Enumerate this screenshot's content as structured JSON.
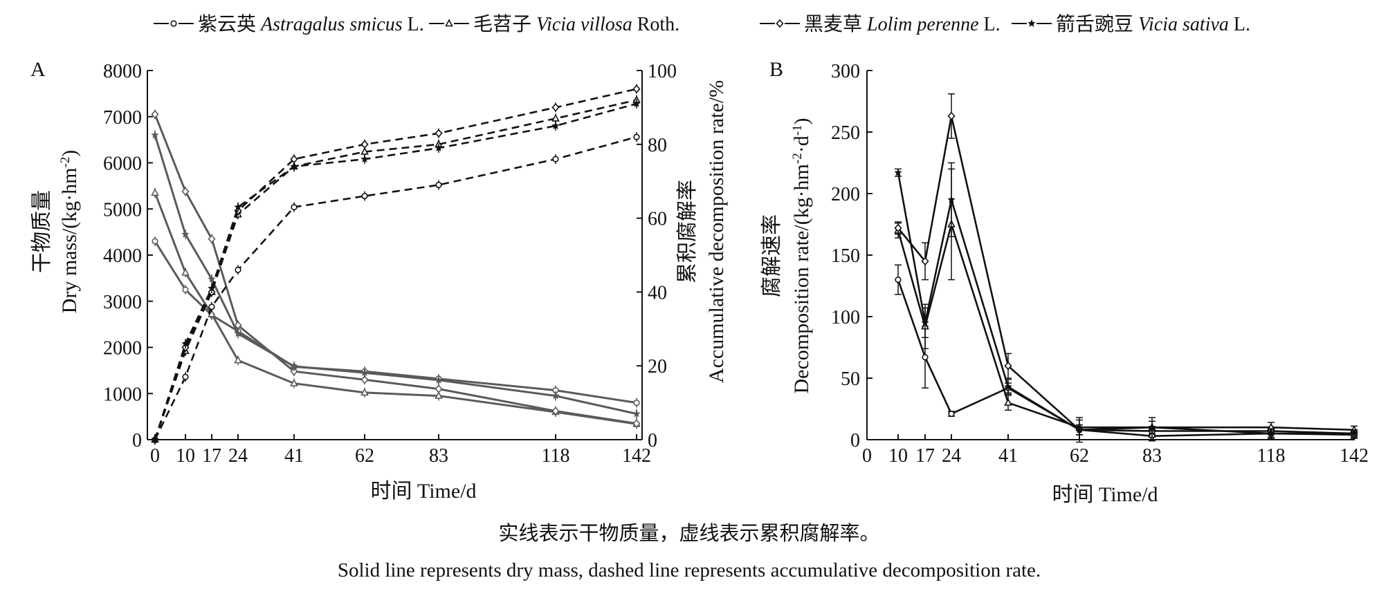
{
  "legend": [
    {
      "cn": "紫云英",
      "latin": "Astragalus smicus",
      "author": "L.",
      "marker": "circle"
    },
    {
      "cn": "毛苕子",
      "latin": "Vicia villosa",
      "author": "Roth.",
      "marker": "triangle"
    },
    {
      "cn": "黑麦草",
      "latin": "Lolim perenne",
      "author": "L.",
      "marker": "diamond"
    },
    {
      "cn": "箭舌豌豆",
      "latin": "Vicia sativa",
      "author": "L.",
      "marker": "star"
    }
  ],
  "caption": {
    "cn": "实线表示干物质量，虚线表示累积腐解率。",
    "en": "Solid line represents dry mass, dashed line represents accumulative decomposition rate."
  },
  "chart_data": [
    {
      "panel_label": "A",
      "type": "line",
      "x": [
        0,
        10,
        17,
        24,
        41,
        62,
        83,
        118,
        142
      ],
      "xticks": [
        "0",
        "10",
        "17",
        "24",
        "41",
        "62",
        "83",
        "118",
        "142"
      ],
      "xlabel": "时间 Time/d",
      "ylabel_left": {
        "cn": "干物质量",
        "en": "Dry mass/(kg·hm",
        "sup": "-2",
        "close": ")"
      },
      "ylabel_right": {
        "cn": "累积腐解率",
        "en": "Accumulative decomposition rate/%"
      },
      "ylim_left": [
        0,
        8000
      ],
      "ylim_right": [
        0,
        100
      ],
      "yticks_left": [
        "0",
        "1000",
        "2000",
        "3000",
        "4000",
        "5000",
        "6000",
        "7000",
        "8000"
      ],
      "yticks_right": [
        "0",
        "20",
        "40",
        "60",
        "80",
        "100"
      ],
      "line_color": "#5a5a5a",
      "dry_mass_series": [
        {
          "marker": "circle",
          "values": [
            4300,
            3250,
            2700,
            2350,
            1580,
            1480,
            1320,
            1070,
            800
          ]
        },
        {
          "marker": "triangle",
          "values": [
            5350,
            3620,
            2720,
            1720,
            1220,
            1020,
            950,
            600,
            340
          ]
        },
        {
          "marker": "diamond",
          "values": [
            7050,
            5380,
            4350,
            2480,
            1480,
            1300,
            1100,
            620,
            350
          ]
        },
        {
          "marker": "star",
          "values": [
            6600,
            4450,
            3480,
            2300,
            1590,
            1450,
            1290,
            950,
            560
          ]
        }
      ],
      "decomposition_series": [
        {
          "marker": "circle",
          "values": [
            0,
            17,
            36,
            46,
            63,
            66,
            69,
            76,
            82
          ]
        },
        {
          "marker": "triangle",
          "values": [
            0,
            24,
            40,
            61,
            74,
            78,
            80,
            87,
            92
          ]
        },
        {
          "marker": "diamond",
          "values": [
            0,
            25,
            40,
            62,
            76,
            80,
            83,
            90,
            95
          ]
        },
        {
          "marker": "star",
          "values": [
            0,
            26,
            41,
            63,
            74,
            76,
            79,
            85,
            91
          ]
        }
      ]
    },
    {
      "panel_label": "B",
      "type": "line",
      "x": [
        10,
        17,
        24,
        41,
        62,
        83,
        118,
        142
      ],
      "xticks": [
        "0",
        "10",
        "17",
        "24",
        "41",
        "62",
        "83",
        "118",
        "142"
      ],
      "xlabel": "时间 Time/d",
      "ylabel": {
        "cn": "腐解速率",
        "en": "Decomposition rate/(kg·hm",
        "sup1": "-2",
        "mid": "·d",
        "sup2": "-1",
        "close": ")"
      },
      "ylim": [
        0,
        300
      ],
      "yticks": [
        "0",
        "50",
        "100",
        "150",
        "200",
        "250",
        "300"
      ],
      "series": [
        {
          "marker": "circle",
          "values": [
            130,
            67,
            21,
            42,
            8,
            7,
            7,
            5
          ]
        },
        {
          "marker": "triangle",
          "values": [
            170,
            92,
            175,
            30,
            10,
            10,
            10,
            8
          ]
        },
        {
          "marker": "diamond",
          "values": [
            172,
            145,
            263,
            60,
            8,
            3,
            5,
            4
          ]
        },
        {
          "marker": "star",
          "values": [
            217,
            95,
            195,
            43,
            8,
            10,
            5,
            5
          ]
        }
      ]
    }
  ]
}
